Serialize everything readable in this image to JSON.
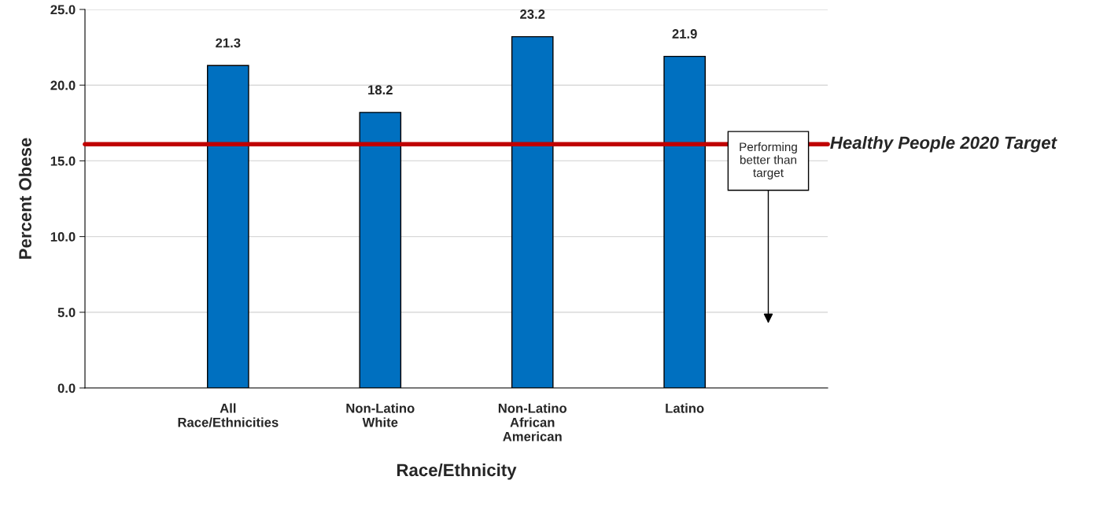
{
  "chart_data": {
    "type": "bar",
    "xlabel": "Race/Ethnicity",
    "ylabel": "Percent Obese",
    "categories": [
      "All\nRace/Ethnicities",
      "Non-Latino\nWhite",
      "Non-Latino\nAfrican\nAmerican",
      "Latino"
    ],
    "values": [
      21.3,
      18.2,
      23.2,
      21.9
    ],
    "color": "#0070c0",
    "ylim": [
      0,
      25
    ],
    "yticks": [
      {
        "value": 0,
        "label": "0.0"
      },
      {
        "value": 5,
        "label": "5.0"
      },
      {
        "value": 10,
        "label": "10.0"
      },
      {
        "value": 15,
        "label": "15.0"
      },
      {
        "value": 20,
        "label": "20.0"
      },
      {
        "value": 25,
        "label": "25.0"
      }
    ],
    "grid": "y",
    "data_labels": true,
    "ref_lines": [
      {
        "axis": "y",
        "value": 16.1,
        "label": "Healthy People 2020 Target",
        "color": "#c00000",
        "line_style": "solid"
      }
    ],
    "annotations": [
      "Performing\nbetter than\ntarget"
    ]
  }
}
